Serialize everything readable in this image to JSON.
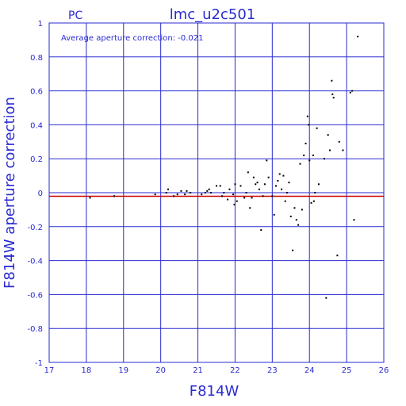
{
  "chart_data": {
    "type": "scatter",
    "panel_label": "PC",
    "title": "lmc_u2c501",
    "annotation": "Average aperture correction: -0.021",
    "xlabel": "F814W",
    "ylabel": "F814W aperture correction",
    "xlim": [
      17,
      26
    ],
    "ylim": [
      -1,
      1
    ],
    "grid": true,
    "xticks": [
      "17",
      "18",
      "19",
      "20",
      "21",
      "22",
      "23",
      "24",
      "25",
      "26"
    ],
    "yticks": [
      "1",
      "0.8",
      "0.6",
      "0.4",
      "0.2",
      "0",
      "-0.2",
      "-0.4",
      "-0.6",
      "-0.8",
      "-1"
    ],
    "reference_line": {
      "y": -0.021,
      "color": "#cc0000"
    },
    "colors": {
      "axes": "#2a2ad0",
      "points": "#000000"
    },
    "points": [
      [
        18.1,
        -0.03
      ],
      [
        18.75,
        -0.02
      ],
      [
        19.85,
        -0.01
      ],
      [
        20.15,
        0.0
      ],
      [
        20.2,
        0.02
      ],
      [
        20.35,
        -0.02
      ],
      [
        20.45,
        -0.01
      ],
      [
        20.55,
        0.01
      ],
      [
        20.65,
        -0.01
      ],
      [
        20.7,
        0.01
      ],
      [
        20.8,
        0.0
      ],
      [
        21.1,
        -0.01
      ],
      [
        21.2,
        0.0
      ],
      [
        21.25,
        0.01
      ],
      [
        21.3,
        0.02
      ],
      [
        21.35,
        0.0
      ],
      [
        21.5,
        0.04
      ],
      [
        21.6,
        0.04
      ],
      [
        21.65,
        -0.02
      ],
      [
        21.7,
        0.0
      ],
      [
        21.8,
        -0.04
      ],
      [
        21.85,
        0.02
      ],
      [
        21.95,
        -0.01
      ],
      [
        21.98,
        -0.07
      ],
      [
        22.0,
        0.05
      ],
      [
        22.05,
        -0.05
      ],
      [
        22.15,
        0.04
      ],
      [
        22.25,
        -0.03
      ],
      [
        22.3,
        0.0
      ],
      [
        22.35,
        0.12
      ],
      [
        22.4,
        -0.09
      ],
      [
        22.45,
        -0.03
      ],
      [
        22.5,
        0.09
      ],
      [
        22.55,
        0.05
      ],
      [
        22.6,
        0.06
      ],
      [
        22.65,
        0.02
      ],
      [
        22.7,
        -0.22
      ],
      [
        22.75,
        -0.02
      ],
      [
        22.8,
        0.05
      ],
      [
        22.85,
        0.19
      ],
      [
        22.9,
        0.09
      ],
      [
        23.0,
        -0.02
      ],
      [
        23.05,
        -0.13
      ],
      [
        23.1,
        0.04
      ],
      [
        23.15,
        0.07
      ],
      [
        23.2,
        0.11
      ],
      [
        23.25,
        0.02
      ],
      [
        23.3,
        0.1
      ],
      [
        23.35,
        -0.05
      ],
      [
        23.4,
        0.0
      ],
      [
        23.45,
        0.06
      ],
      [
        23.5,
        -0.14
      ],
      [
        23.55,
        -0.34
      ],
      [
        23.6,
        -0.09
      ],
      [
        23.65,
        -0.16
      ],
      [
        23.7,
        -0.19
      ],
      [
        23.75,
        0.17
      ],
      [
        23.8,
        -0.1
      ],
      [
        23.85,
        0.22
      ],
      [
        23.9,
        0.29
      ],
      [
        23.95,
        0.45
      ],
      [
        23.98,
        0.4
      ],
      [
        24.0,
        0.19
      ],
      [
        24.05,
        -0.06
      ],
      [
        24.1,
        0.22
      ],
      [
        24.12,
        -0.05
      ],
      [
        24.15,
        0.0
      ],
      [
        24.2,
        0.38
      ],
      [
        24.25,
        0.05
      ],
      [
        24.4,
        0.2
      ],
      [
        24.45,
        -0.62
      ],
      [
        24.5,
        0.34
      ],
      [
        24.55,
        0.25
      ],
      [
        24.6,
        0.66
      ],
      [
        24.62,
        0.58
      ],
      [
        24.65,
        0.56
      ],
      [
        24.75,
        -0.37
      ],
      [
        24.8,
        0.3
      ],
      [
        24.9,
        0.25
      ],
      [
        25.1,
        0.59
      ],
      [
        25.15,
        0.6
      ],
      [
        25.2,
        -0.16
      ],
      [
        25.3,
        0.92
      ]
    ]
  }
}
